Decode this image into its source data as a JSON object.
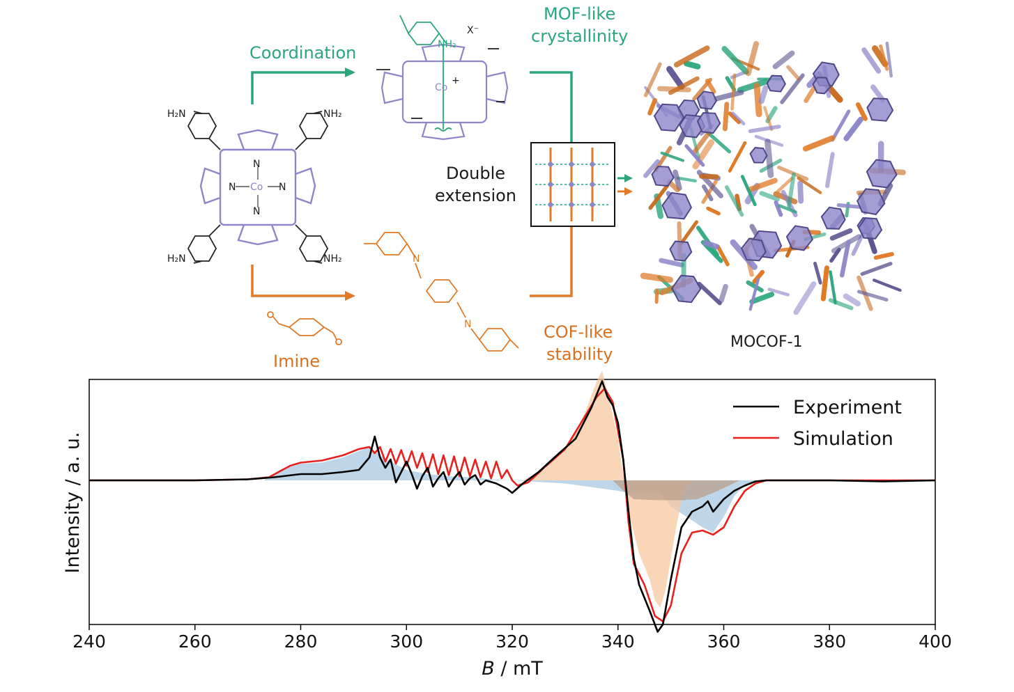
{
  "colors": {
    "teal": "#2aa57e",
    "orange": "#e07a26",
    "porphyrin": "#8d86c9",
    "black": "#000000",
    "red": "#e8201e",
    "fill_blue": "#a7c8e2",
    "fill_orange": "#f7c8a0",
    "fill_brown": "#b9a08c"
  },
  "scheme": {
    "coordination_label": "Coordination",
    "imine_label": "Imine",
    "mof_label_line1": "MOF-like",
    "mof_label_line2": "crystallinity",
    "cof_label_line1": "COF-like",
    "cof_label_line2": "stability",
    "double_label_line1": "Double",
    "double_label_line2": "extension",
    "product_label": "MOCOF-1",
    "counterion": "X⁻",
    "amine_group": "NH₂",
    "amine_group_left": "H₂N",
    "cobalt": "Co",
    "cobalt_charge": "+",
    "nitrogen": "N"
  },
  "chart_data": {
    "type": "line",
    "xlabel_italic": "B",
    "xlabel_unit": " / mT",
    "ylabel": "Intensity / a. u.",
    "xlim": [
      240,
      400
    ],
    "x_ticks": [
      240,
      260,
      280,
      300,
      320,
      340,
      360,
      380,
      400
    ],
    "yticks_shown": false,
    "legend_position": "top-right",
    "legend": [
      "Experiment",
      "Simulation"
    ],
    "series": [
      {
        "name": "Experiment",
        "color": "#000000",
        "points": [
          [
            240,
            0
          ],
          [
            260,
            0
          ],
          [
            270,
            0.01
          ],
          [
            275,
            0.03
          ],
          [
            280,
            0.06
          ],
          [
            284,
            0.06
          ],
          [
            288,
            0.08
          ],
          [
            291,
            0.1
          ],
          [
            293,
            0.22
          ],
          [
            294,
            0.42
          ],
          [
            295,
            0.22
          ],
          [
            296,
            0.12
          ],
          [
            297,
            0.2
          ],
          [
            298,
            -0.02
          ],
          [
            299,
            0.08
          ],
          [
            300,
            0.18
          ],
          [
            301,
            0.06
          ],
          [
            302,
            -0.08
          ],
          [
            303,
            0.04
          ],
          [
            304,
            0.12
          ],
          [
            305,
            -0.06
          ],
          [
            306,
            0.02
          ],
          [
            307,
            0.08
          ],
          [
            308,
            -0.06
          ],
          [
            309,
            0.02
          ],
          [
            310,
            0.08
          ],
          [
            311,
            -0.04
          ],
          [
            312,
            0.02
          ],
          [
            313,
            0.05
          ],
          [
            314,
            -0.04
          ],
          [
            315,
            0.0
          ],
          [
            317,
            -0.03
          ],
          [
            319,
            -0.08
          ],
          [
            320,
            -0.12
          ],
          [
            322,
            -0.03
          ],
          [
            325,
            0.08
          ],
          [
            328,
            0.22
          ],
          [
            332,
            0.4
          ],
          [
            335,
            0.7
          ],
          [
            337,
            0.95
          ],
          [
            338,
            0.8
          ],
          [
            339,
            0.72
          ],
          [
            340,
            0.55
          ],
          [
            341,
            0.2
          ],
          [
            342,
            -0.3
          ],
          [
            343,
            -0.75
          ],
          [
            344,
            -1.0
          ],
          [
            346,
            -1.25
          ],
          [
            347.5,
            -1.45
          ],
          [
            348.5,
            -1.38
          ],
          [
            350,
            -0.95
          ],
          [
            352,
            -0.45
          ],
          [
            354,
            -0.3
          ],
          [
            356,
            -0.25
          ],
          [
            357,
            -0.2
          ],
          [
            358,
            -0.3
          ],
          [
            360,
            -0.18
          ],
          [
            362,
            -0.1
          ],
          [
            364,
            -0.05
          ],
          [
            366,
            -0.01
          ],
          [
            368,
            0
          ],
          [
            380,
            0
          ],
          [
            390,
            -0.01
          ],
          [
            400,
            0
          ]
        ]
      },
      {
        "name": "Simulation",
        "color": "#e8201e",
        "points": [
          [
            240,
            0
          ],
          [
            260,
            0
          ],
          [
            270,
            0.01
          ],
          [
            274,
            0.03
          ],
          [
            278,
            0.14
          ],
          [
            280,
            0.17
          ],
          [
            284,
            0.19
          ],
          [
            288,
            0.24
          ],
          [
            291,
            0.3
          ],
          [
            293,
            0.32
          ],
          [
            294,
            0.26
          ],
          [
            295,
            0.32
          ],
          [
            296,
            0.18
          ],
          [
            297,
            0.3
          ],
          [
            298,
            0.16
          ],
          [
            299,
            0.29
          ],
          [
            300,
            0.14
          ],
          [
            301,
            0.28
          ],
          [
            302,
            0.12
          ],
          [
            303,
            0.26
          ],
          [
            304,
            0.08
          ],
          [
            305,
            0.25
          ],
          [
            306,
            0.06
          ],
          [
            307,
            0.24
          ],
          [
            308,
            0.05
          ],
          [
            309,
            0.23
          ],
          [
            310,
            0.04
          ],
          [
            311,
            0.22
          ],
          [
            312,
            0.04
          ],
          [
            313,
            0.2
          ],
          [
            314,
            0.03
          ],
          [
            315,
            0.18
          ],
          [
            316,
            0.02
          ],
          [
            317,
            0.18
          ],
          [
            318,
            0.02
          ],
          [
            319,
            0.1
          ],
          [
            320,
            0.0
          ],
          [
            321,
            -0.05
          ],
          [
            323,
            -0.02
          ],
          [
            326,
            0.12
          ],
          [
            330,
            0.3
          ],
          [
            333,
            0.55
          ],
          [
            336,
            0.8
          ],
          [
            337.5,
            0.88
          ],
          [
            339,
            0.75
          ],
          [
            341,
            0.2
          ],
          [
            342,
            -0.4
          ],
          [
            343,
            -0.8
          ],
          [
            345,
            -1.0
          ],
          [
            347,
            -1.3
          ],
          [
            348.5,
            -1.35
          ],
          [
            350,
            -1.2
          ],
          [
            352,
            -0.7
          ],
          [
            354,
            -0.5
          ],
          [
            356,
            -0.48
          ],
          [
            358,
            -0.52
          ],
          [
            360,
            -0.45
          ],
          [
            362,
            -0.25
          ],
          [
            364,
            -0.1
          ],
          [
            366,
            -0.03
          ],
          [
            368,
            0
          ],
          [
            380,
            0
          ],
          [
            400,
            0
          ]
        ]
      }
    ],
    "shaded_components": [
      {
        "color": "#a7c8e2",
        "points": [
          [
            273,
            0
          ],
          [
            276,
            0.1
          ],
          [
            280,
            0.16
          ],
          [
            284,
            0.17
          ],
          [
            288,
            0.22
          ],
          [
            291,
            0.28
          ],
          [
            293,
            0.32
          ],
          [
            295,
            0.24
          ],
          [
            297,
            0.18
          ],
          [
            300,
            0.1
          ],
          [
            304,
            0.06
          ],
          [
            308,
            0.04
          ],
          [
            312,
            0.03
          ],
          [
            316,
            0.01
          ],
          [
            320,
            0
          ],
          [
            330,
            -0.03
          ],
          [
            340,
            -0.1
          ],
          [
            342,
            -0.12
          ],
          [
            345,
            -0.12
          ],
          [
            348,
            -0.12
          ],
          [
            350,
            -0.25
          ],
          [
            353,
            -0.35
          ],
          [
            356,
            -0.45
          ],
          [
            358,
            -0.5
          ],
          [
            360,
            -0.35
          ],
          [
            362,
            -0.15
          ],
          [
            364,
            -0.04
          ],
          [
            366,
            0
          ]
        ]
      },
      {
        "color": "#f7c8a0",
        "points": [
          [
            322,
            0
          ],
          [
            326,
            0.1
          ],
          [
            330,
            0.3
          ],
          [
            333,
            0.55
          ],
          [
            336,
            0.95
          ],
          [
            337,
            1.05
          ],
          [
            338,
            0.85
          ],
          [
            340,
            0.4
          ],
          [
            341,
            0.05
          ],
          [
            342,
            -0.3
          ],
          [
            344,
            -0.7
          ],
          [
            346,
            -0.95
          ],
          [
            347,
            -1.15
          ],
          [
            348,
            -1.22
          ],
          [
            349,
            -1.05
          ],
          [
            350,
            -0.75
          ],
          [
            351,
            -0.45
          ],
          [
            352,
            -0.2
          ],
          [
            353,
            -0.05
          ],
          [
            354,
            0
          ]
        ]
      },
      {
        "color": "#b9a08c",
        "points": [
          [
            339,
            0
          ],
          [
            341,
            -0.1
          ],
          [
            343,
            -0.18
          ],
          [
            347,
            -0.19
          ],
          [
            352,
            -0.19
          ],
          [
            355,
            -0.18
          ],
          [
            358,
            -0.12
          ],
          [
            361,
            -0.05
          ],
          [
            363,
            0
          ]
        ]
      }
    ]
  }
}
